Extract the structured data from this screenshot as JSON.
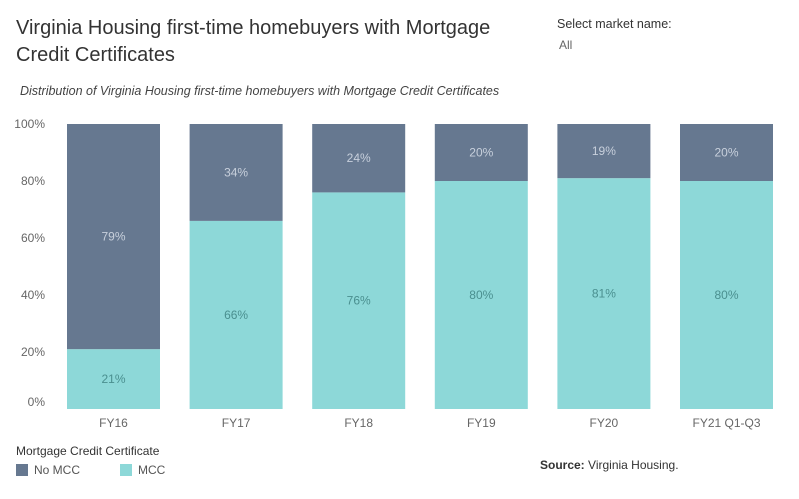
{
  "header": {
    "title": "Virginia Housing first-time homebuyers with Mortgage Credit Certificates",
    "subtitle": "Distribution of Virginia Housing first-time homebuyers with Mortgage Credit Certificates"
  },
  "filter": {
    "label": "Select market name:",
    "value": "All"
  },
  "legend": {
    "title": "Mortgage Credit Certificate",
    "items": [
      {
        "label": "No MCC",
        "color": "#667890"
      },
      {
        "label": "MCC",
        "color": "#8dd8d8"
      }
    ]
  },
  "source": {
    "label": "Source:",
    "value": "Virginia Housing."
  },
  "chart_data": {
    "type": "bar",
    "stacked": true,
    "categories": [
      "FY16",
      "FY17",
      "FY18",
      "FY19",
      "FY20",
      "FY21 Q1-Q3"
    ],
    "series": [
      {
        "name": "MCC",
        "values": [
          21,
          66,
          76,
          80,
          81,
          80
        ],
        "color": "#8dd8d8"
      },
      {
        "name": "No MCC",
        "values": [
          79,
          34,
          24,
          20,
          19,
          20
        ],
        "color": "#667890"
      }
    ],
    "y_ticks": [
      "0%",
      "20%",
      "40%",
      "60%",
      "80%",
      "100%"
    ],
    "ylim": [
      0,
      100
    ],
    "title": "",
    "xlabel": "",
    "ylabel": "",
    "grid": false,
    "legend_position": "bottom-left"
  }
}
